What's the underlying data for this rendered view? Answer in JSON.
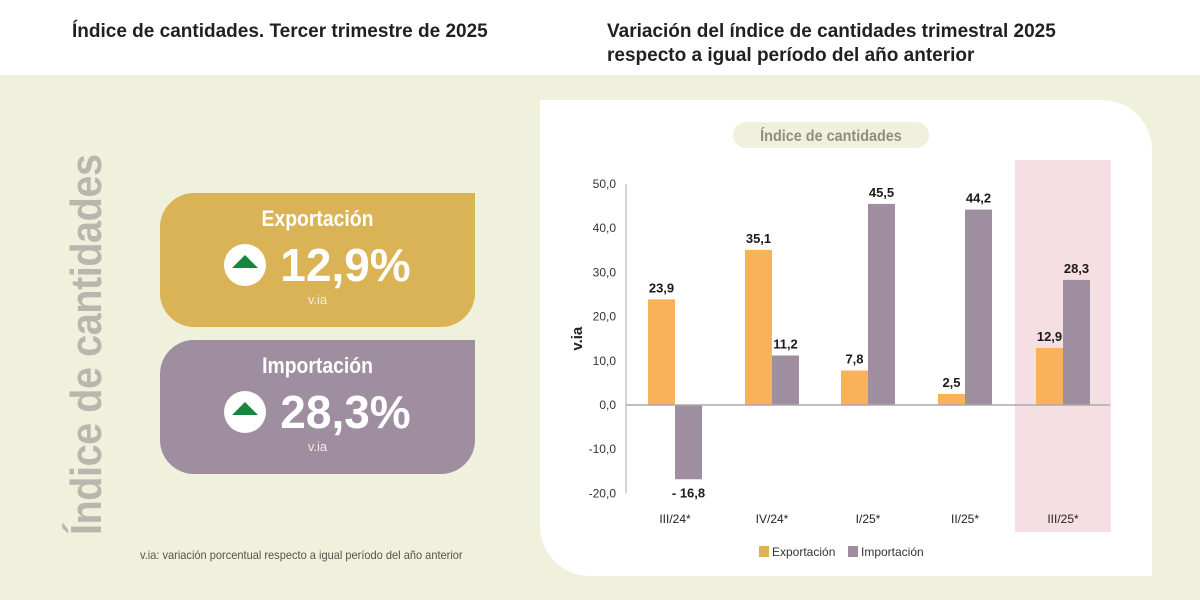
{
  "left_title": "Índice de cantidades. Tercer trimestre de 2025",
  "right_title": "Variación del índice de cantidades trimestral 2025 respecto a igual período del año anterior",
  "vertical_label": "Índice de cantidades",
  "cards": [
    {
      "label": "Exportación",
      "value": "12,9%",
      "unit": "v.ia",
      "icon": "arrow-up-icon",
      "color": "#dbb357"
    },
    {
      "label": "Importación",
      "value": "28,3%",
      "unit": "v.ia",
      "icon": "arrow-up-icon",
      "color": "#9e8ea0"
    }
  ],
  "footnote": "v.ia: variación porcentual respecto a igual período del año anterior",
  "chart_data": {
    "type": "bar",
    "title": "Índice de cantidades",
    "ylabel": "v.ia",
    "xlabel": "",
    "ylim": [
      -20,
      50
    ],
    "yticks": [
      "50,0",
      "40,0",
      "30,0",
      "20,0",
      "10,0",
      "0,0",
      "-10,0",
      "-20,0"
    ],
    "ytick_values": [
      50,
      40,
      30,
      20,
      10,
      0,
      -10,
      -20
    ],
    "categories": [
      "III/24*",
      "IV/24*",
      "I/25*",
      "II/25*",
      "III/25*"
    ],
    "highlighted_category": "III/25*",
    "series": [
      {
        "name": "Exportación",
        "color": "#f9b25a",
        "values": [
          23.9,
          35.1,
          7.8,
          2.5,
          12.9
        ],
        "labels": [
          "23,9",
          "35,1",
          "7,8",
          "2,5",
          "12,9"
        ]
      },
      {
        "name": "Importación",
        "color": "#9e8ea0",
        "values": [
          -16.8,
          11.2,
          45.5,
          44.2,
          28.3
        ],
        "labels": [
          "- 16,8",
          "11,2",
          "45,5",
          "44,2",
          "28,3"
        ]
      }
    ],
    "legend_position": "bottom",
    "legend_colors": [
      "#dbb357",
      "#9e8ea0"
    ],
    "grid": false
  }
}
